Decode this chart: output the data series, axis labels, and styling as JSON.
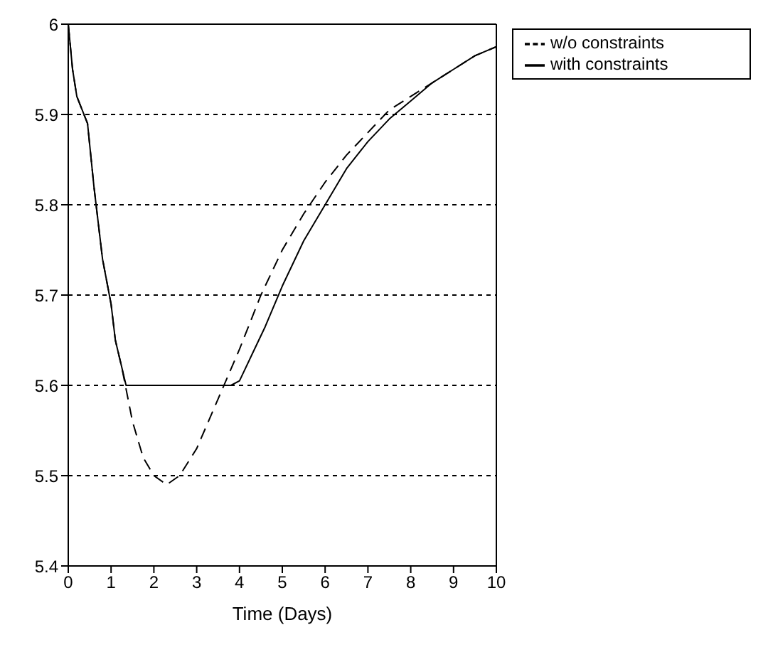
{
  "chart_data": {
    "type": "line",
    "xlabel": "Time (Days)",
    "xlim": [
      0,
      10
    ],
    "xticks": [
      0,
      1,
      2,
      3,
      4,
      5,
      6,
      7,
      8,
      9,
      10
    ],
    "ylim": [
      5.4,
      6
    ],
    "yticks": [
      5.4,
      5.5,
      5.6,
      5.7,
      5.8,
      5.9,
      6
    ],
    "grid": "y",
    "legend": "top right",
    "marker": "none",
    "series": [
      {
        "name": "w/o constraints",
        "color": "#000000",
        "line_style": "dashed",
        "x": [
          0,
          0.1,
          0.2,
          0.45,
          0.6,
          0.8,
          1,
          1.1,
          1.25,
          1.5,
          1.75,
          2,
          2.3,
          2.6,
          3,
          3.5,
          4,
          4.5,
          5,
          5.5,
          6,
          6.5,
          7,
          7.5,
          8,
          8.5,
          9,
          9.5,
          10
        ],
        "values": [
          6,
          5.95,
          5.92,
          5.89,
          5.82,
          5.74,
          5.69,
          5.65,
          5.62,
          5.56,
          5.52,
          5.5,
          5.49,
          5.5,
          5.53,
          5.585,
          5.64,
          5.7,
          5.75,
          5.79,
          5.825,
          5.855,
          5.88,
          5.905,
          5.92,
          5.935,
          5.95,
          5.965,
          5.975
        ]
      },
      {
        "name": "with constraints",
        "color": "#000000",
        "line_style": "solid",
        "x": [
          0,
          0.1,
          0.2,
          0.45,
          0.6,
          0.8,
          1,
          1.1,
          1.2,
          1.35,
          2,
          3,
          3.8,
          4,
          4.3,
          4.6,
          5,
          5.5,
          6,
          6.5,
          7,
          7.5,
          8,
          8.5,
          9,
          9.5,
          10
        ],
        "values": [
          6,
          5.95,
          5.92,
          5.89,
          5.82,
          5.74,
          5.69,
          5.65,
          5.63,
          5.6,
          5.6,
          5.6,
          5.6,
          5.605,
          5.635,
          5.665,
          5.71,
          5.76,
          5.8,
          5.84,
          5.87,
          5.895,
          5.915,
          5.935,
          5.95,
          5.965,
          5.975
        ]
      }
    ]
  }
}
